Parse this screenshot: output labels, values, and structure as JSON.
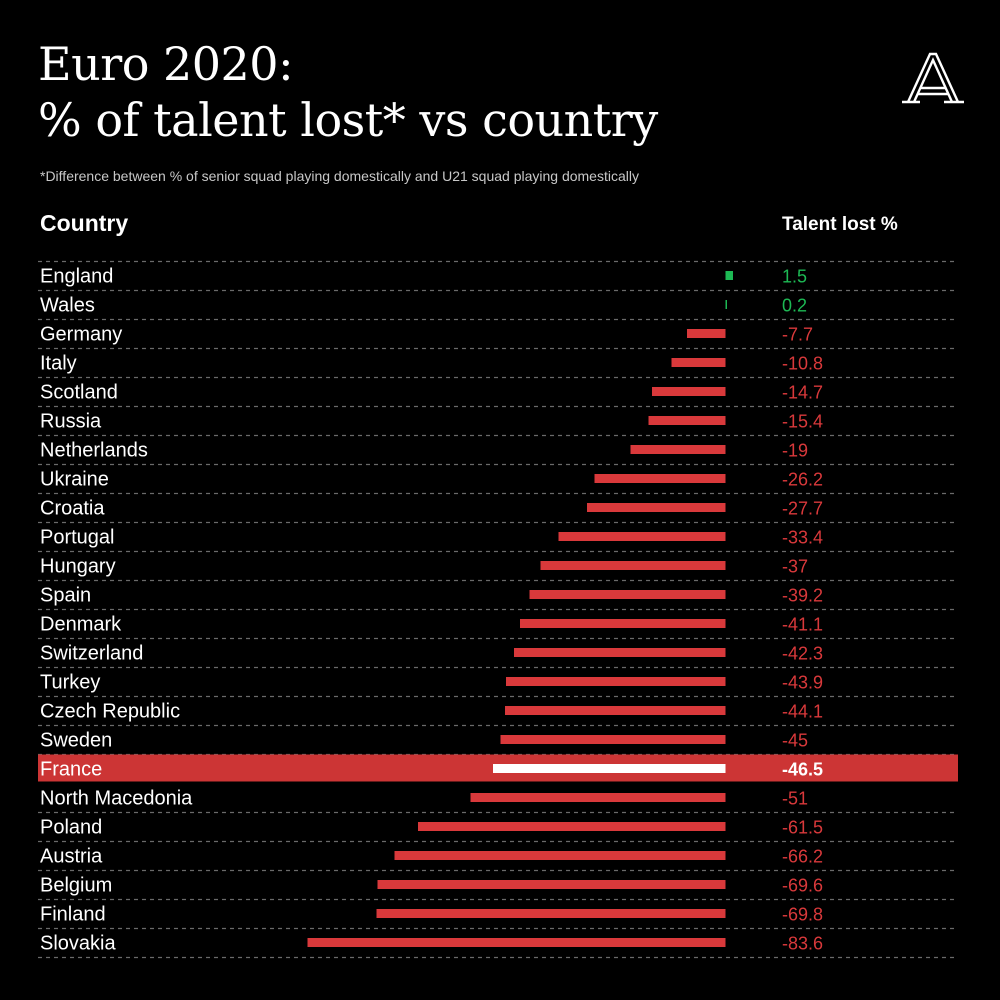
{
  "header": {
    "title_line1": "Euro 2020:",
    "title_line2": "% of talent lost* vs country",
    "subtitle": "*Difference between % of senior squad playing domestically and U21 squad playing domestically",
    "logo_letter": "A"
  },
  "colors": {
    "background": "#000000",
    "negative": "#d9393b",
    "positive": "#1db954",
    "highlight_band": "#cc3535",
    "highlight_bar": "#ffffff",
    "divider": "#6a6a6a"
  },
  "chart_data": {
    "type": "bar",
    "orientation": "horizontal",
    "column_headers": {
      "category": "Country",
      "value": "Talent lost %"
    },
    "highlight": "France",
    "xlim": [
      -83.6,
      1.5
    ],
    "categories": [
      "England",
      "Wales",
      "Germany",
      "Italy",
      "Scotland",
      "Russia",
      "Netherlands",
      "Ukraine",
      "Croatia",
      "Portugal",
      "Hungary",
      "Spain",
      "Denmark",
      "Switzerland",
      "Turkey",
      "Czech Republic",
      "Sweden",
      "France",
      "North Macedonia",
      "Poland",
      "Austria",
      "Belgium",
      "Finland",
      "Slovakia"
    ],
    "values": [
      1.5,
      0.2,
      -7.7,
      -10.8,
      -14.7,
      -15.4,
      -19,
      -26.2,
      -27.7,
      -33.4,
      -37,
      -39.2,
      -41.1,
      -42.3,
      -43.9,
      -44.1,
      -45,
      -46.5,
      -51,
      -61.5,
      -66.2,
      -69.6,
      -69.8,
      -83.6
    ],
    "labels": [
      "1.5",
      "0.2",
      "-7.7",
      "-10.8",
      "-14.7",
      "-15.4",
      "-19",
      "-26.2",
      "-27.7",
      "-33.4",
      "-37",
      "-39.2",
      "-41.1",
      "-42.3",
      "-43.9",
      "-44.1",
      "-45",
      "-46.5",
      "-51",
      "-61.5",
      "-66.2",
      "-69.6",
      "-69.8",
      "-83.6"
    ]
  }
}
